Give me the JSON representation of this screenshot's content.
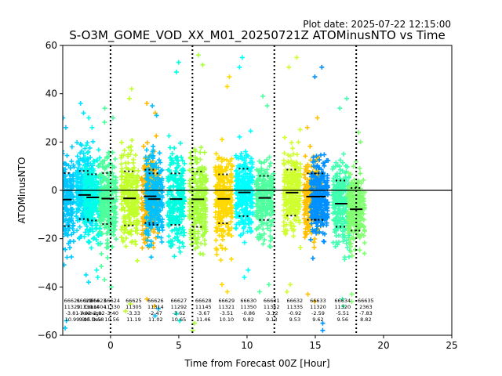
{
  "plot_date": "Plot date: 2025-07-22 12:15:00",
  "chart_data": {
    "type": "scatter",
    "title": "S-O3M_GOME_VOD_XX_M01_20250721Z ATOMinusNTO vs Time",
    "xlabel": "Time from Forecast 00Z [Hour]",
    "ylabel": "ATOMinusNTO",
    "xlim": [
      -3.5,
      25
    ],
    "ylim": [
      -60,
      60
    ],
    "xticks": [
      0,
      5,
      10,
      15,
      20,
      25
    ],
    "yticks": [
      -60,
      -40,
      -20,
      0,
      20,
      40,
      60
    ],
    "xtick_labels": [
      "0",
      "5",
      "10",
      "15",
      "20",
      "25"
    ],
    "ytick_labels": [
      "−60",
      "−40",
      "−20",
      "0",
      "20",
      "40",
      "60"
    ],
    "grid": false,
    "zero_line": 0,
    "vertical_dotted_lines": [
      0,
      6,
      12,
      18
    ],
    "marker": "+",
    "orbits": [
      {
        "x": -3.3,
        "orbit": "66621",
        "count": "11329",
        "mean": "-3.81",
        "std": "10.99",
        "lo": -57,
        "hi": 30,
        "color": "#00c8ff"
      },
      {
        "x": -1.9,
        "orbit": "66622",
        "count": "11339",
        "mean": "-1.92",
        "std": "9.95",
        "lo": -38,
        "hi": 36,
        "color": "#00e0ff"
      },
      {
        "x": -1.3,
        "orbit": "66623",
        "count": "11404",
        "mean": "-2.92",
        "std": "9.58",
        "lo": -36,
        "hi": 30,
        "color": "#00ffe8"
      },
      {
        "x": -0.2,
        "orbit": "66624",
        "count": "11330",
        "mean": "-3.40",
        "std": "10.56",
        "lo": -40,
        "hi": 34,
        "color": "#4cff9c"
      },
      {
        "x": 1.4,
        "orbit": "66625",
        "count": "11305",
        "mean": "-3.33",
        "std": "11.19",
        "lo": -50,
        "hi": 42,
        "color": "#c0ff2a"
      },
      {
        "x": 2.9,
        "orbit": "66626",
        "count": "11314",
        "mean": "-2.47",
        "std": "11.02",
        "lo": -48,
        "hi": 36,
        "color": "#ffb800"
      },
      {
        "x": 3.2,
        "orbit": "66627",
        "count": "11292",
        "mean": "-3.62",
        "std": "10.65",
        "lo": -52,
        "hi": 35,
        "color": "#00c0ff"
      },
      {
        "x": 4.8,
        "orbit": "66627",
        "count": "11292",
        "mean": "-3.62",
        "std": "10.65",
        "lo": -54,
        "hi": 53,
        "color": "#00ffe0"
      },
      {
        "x": 6.4,
        "orbit": "66628",
        "count": "11145",
        "mean": "-3.67",
        "std": "11.46",
        "lo": -58,
        "hi": 56,
        "color": "#a8ff40"
      },
      {
        "x": 8.3,
        "orbit": "66629",
        "count": "11321",
        "mean": "-3.51",
        "std": "10.10",
        "lo": -42,
        "hi": 47,
        "color": "#ffd800"
      },
      {
        "x": 9.8,
        "orbit": "66630",
        "count": "11350",
        "mean": "-0.86",
        "std": "9.82",
        "lo": -36,
        "hi": 55,
        "color": "#00ffff"
      },
      {
        "x": 11.3,
        "orbit": "66631",
        "count": "11362",
        "mean": "-3.12",
        "std": "9.13",
        "lo": -42,
        "hi": 39,
        "color": "#50ffa0"
      },
      {
        "x": 13.3,
        "orbit": "66632",
        "count": "11335",
        "mean": "-0.92",
        "std": "9.53",
        "lo": -42,
        "hi": 55,
        "color": "#d0ff30"
      },
      {
        "x": 14.8,
        "orbit": "66633",
        "count": "11320",
        "mean": "-2.59",
        "std": "9.62",
        "lo": -46,
        "hi": 30,
        "color": "#ffc000"
      },
      {
        "x": 15.3,
        "orbit": "66633",
        "count": "11320",
        "mean": "-2.59",
        "std": "9.62",
        "lo": -58,
        "hi": 51,
        "color": "#0090ff"
      },
      {
        "x": 16.9,
        "orbit": "66634",
        "count": "11320",
        "mean": "-5.51",
        "std": "9.56",
        "lo": -48,
        "hi": 38,
        "color": "#40ffb0"
      },
      {
        "x": 18.0,
        "orbit": "66635",
        "count": "2363",
        "mean": "-7.83",
        "std": "8.82",
        "lo": -46,
        "hi": 24,
        "color": "#80ff70"
      }
    ],
    "stat_labels": [
      {
        "x": -3.3,
        "lines": [
          "66621",
          "11329",
          "-3.81",
          "10.99"
        ]
      },
      {
        "x": -1.9,
        "lines": [
          "66622",
          "11339",
          "-1.92",
          "9.95"
        ]
      },
      {
        "x": -1.4,
        "lines": [
          "Orbit#",
          "Count",
          "Average",
          "Std.Dev"
        ]
      },
      {
        "x": -0.9,
        "lines": [
          "66623",
          "11404",
          "-2.92",
          "9.58"
        ]
      },
      {
        "x": 0.1,
        "lines": [
          "66624",
          "11330",
          "-3.40",
          "10.56"
        ]
      },
      {
        "x": 1.7,
        "lines": [
          "66625",
          "11305",
          "-3.33",
          "11.19"
        ]
      },
      {
        "x": 3.3,
        "lines": [
          "66626",
          "11314",
          "-2.47",
          "11.02"
        ]
      },
      {
        "x": 5.0,
        "lines": [
          "66627",
          "11292",
          "-3.62",
          "10.65"
        ]
      },
      {
        "x": 6.8,
        "lines": [
          "66628",
          "11145",
          "-3.67",
          "11.46"
        ]
      },
      {
        "x": 8.5,
        "lines": [
          "66629",
          "11321",
          "-3.51",
          "10.10"
        ]
      },
      {
        "x": 10.1,
        "lines": [
          "66630",
          "11350",
          "-0.86",
          "9.82"
        ]
      },
      {
        "x": 11.8,
        "lines": [
          "66631",
          "11362",
          "-3.12",
          "9.13"
        ]
      },
      {
        "x": 13.5,
        "lines": [
          "66632",
          "11335",
          "-0.92",
          "9.53"
        ]
      },
      {
        "x": 15.2,
        "lines": [
          "66633",
          "11320",
          "-2.59",
          "9.62"
        ]
      },
      {
        "x": 17.0,
        "lines": [
          "66634",
          "11320",
          "-5.51",
          "9.56"
        ]
      },
      {
        "x": 18.7,
        "lines": [
          "66635",
          "2363",
          "-7.83",
          "8.82"
        ]
      }
    ]
  }
}
